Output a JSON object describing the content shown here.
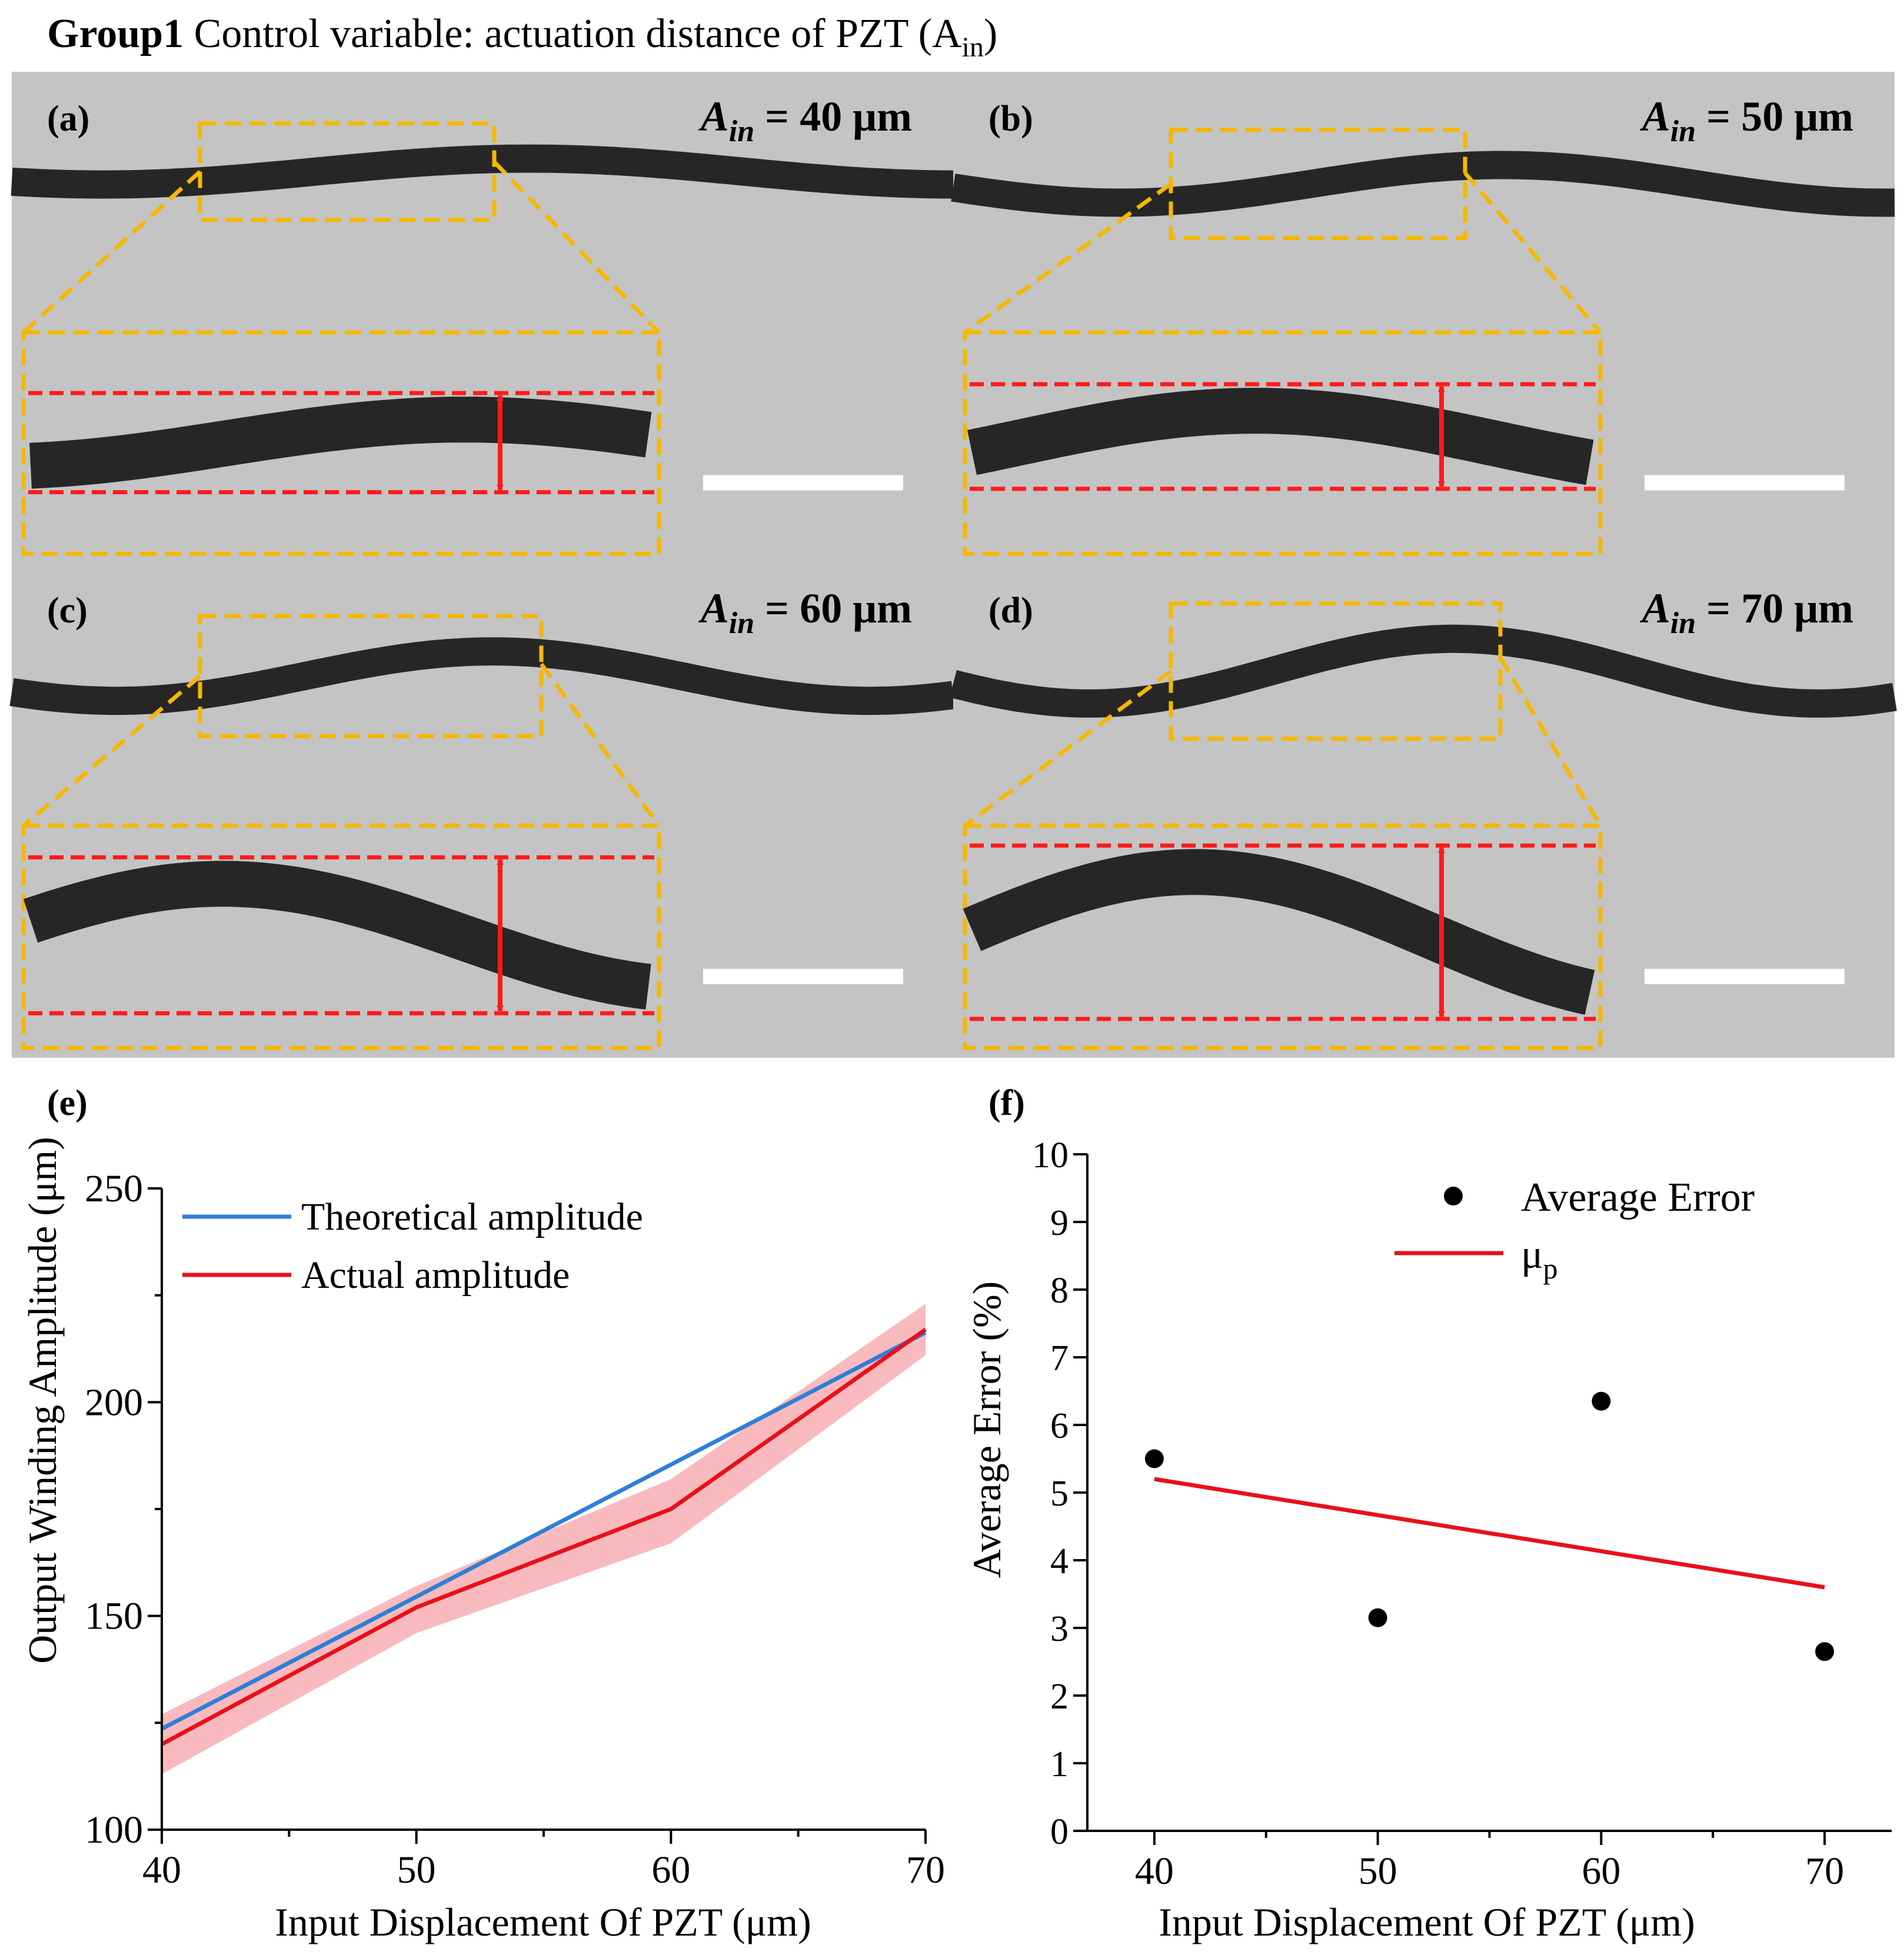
{
  "header": {
    "bold": "Group1",
    "text": " Control variable: actuation distance of PZT (A",
    "sub": "in",
    "close": ")"
  },
  "panels": [
    {
      "label": "(a)",
      "a_var": "A",
      "a_sub": "in",
      "a_value": " = 40 μm"
    },
    {
      "label": "(b)",
      "a_var": "A",
      "a_sub": "in",
      "a_value": " = 50 μm"
    },
    {
      "label": "(c)",
      "a_var": "A",
      "a_sub": "in",
      "a_value": " = 60 μm"
    },
    {
      "label": "(d)",
      "a_var": "A",
      "a_sub": "in",
      "a_value": " = 70 μm"
    }
  ],
  "colors": {
    "micrograph_bg": "#c4c4c4",
    "fiber": "#262626",
    "zoom_box": "#f5b800",
    "measure": "#ff1a1a",
    "scale_bar": "#ffffff",
    "theoretical": "#2e7fd6",
    "actual": "#e8101a",
    "band": "#f6a3a8",
    "overlap": "#5a48a8"
  },
  "chart_data": [
    {
      "panel": "(e)",
      "type": "line",
      "x": [
        40,
        50,
        60,
        70
      ],
      "series": [
        {
          "name": "Theoretical amplitude",
          "values": [
            123.6,
            154.5,
            185.4,
            216.3
          ]
        },
        {
          "name": "Actual amplitude",
          "values": [
            120,
            152,
            175,
            217
          ],
          "band_lower": [
            113,
            146,
            167,
            211
          ],
          "band_upper": [
            127,
            157,
            182,
            223
          ]
        }
      ],
      "xlabel": "Input Displacement Of PZT (μm)",
      "ylabel": "Output Winding Amplitude (μm)",
      "xlim": [
        40,
        70
      ],
      "ylim": [
        100,
        250
      ],
      "xticks": [
        40,
        50,
        60,
        70
      ],
      "yticks": [
        100,
        150,
        200,
        250
      ],
      "legend_position": "top-left"
    },
    {
      "panel": "(f)",
      "type": "scatter",
      "x": [
        40,
        50,
        60,
        70
      ],
      "series": [
        {
          "name": "Average Error",
          "values": [
            5.5,
            3.15,
            6.35,
            2.65
          ]
        },
        {
          "name": "μ",
          "name_sub": "p",
          "kind": "line",
          "x": [
            40,
            70
          ],
          "values": [
            5.2,
            3.6
          ]
        }
      ],
      "xlabel": "Input Displacement Of PZT (μm)",
      "ylabel": "Average Error (%)",
      "xlim": [
        37,
        73
      ],
      "ylim": [
        0,
        10
      ],
      "xticks": [
        40,
        50,
        60,
        70
      ],
      "yticks": [
        0,
        1,
        2,
        3,
        4,
        5,
        6,
        7,
        8,
        9,
        10
      ],
      "legend_position": "top-right"
    }
  ]
}
